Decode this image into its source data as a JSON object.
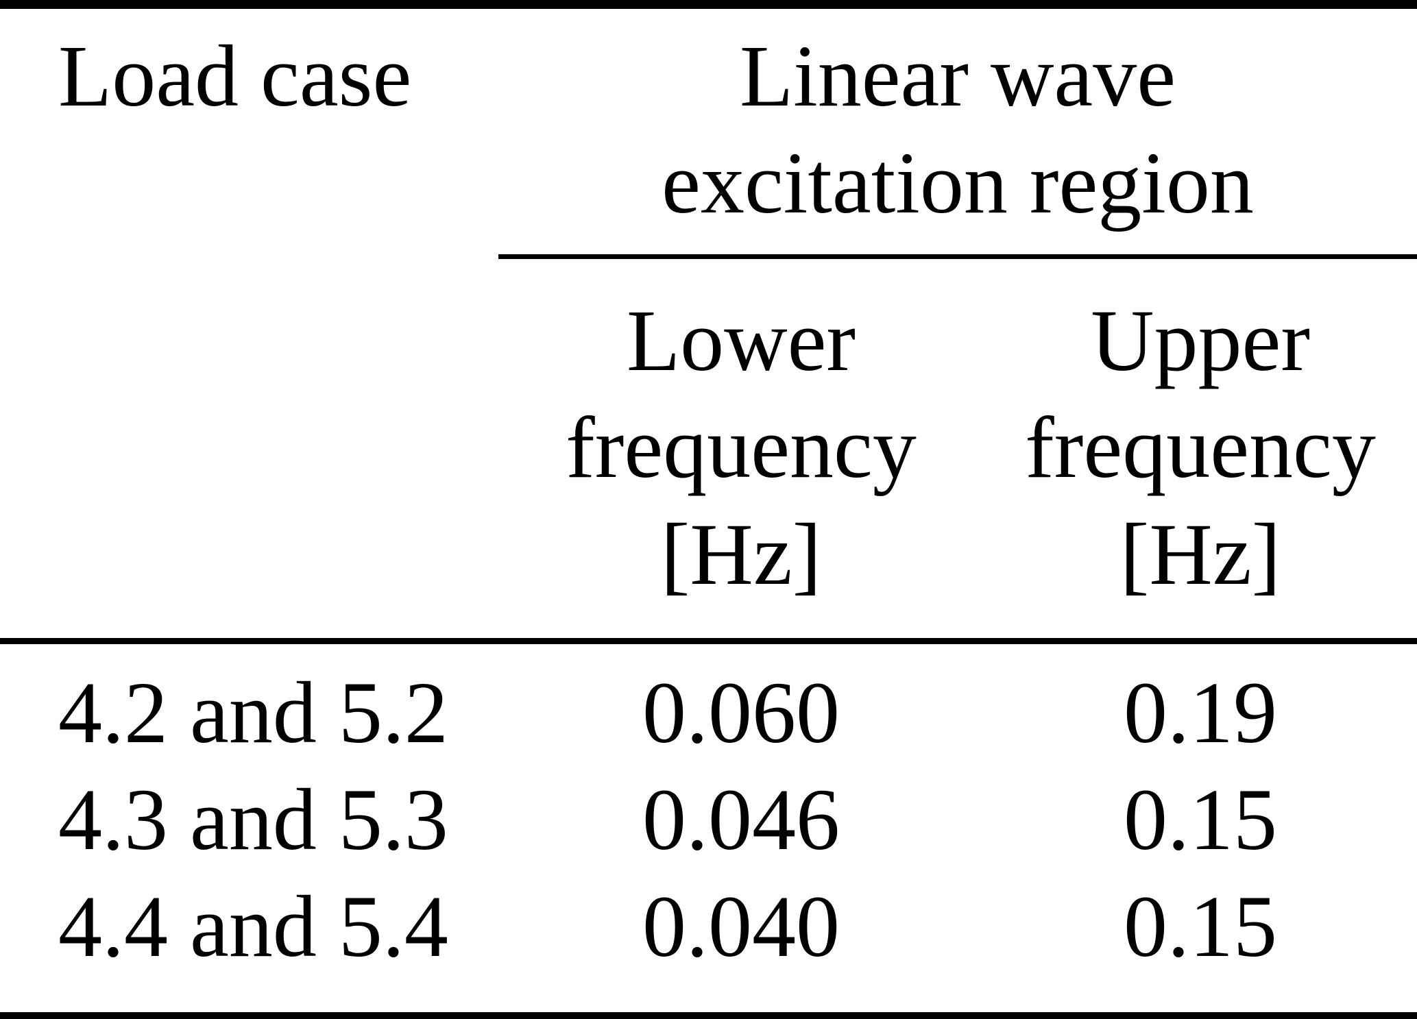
{
  "colors": {
    "text": "#000000",
    "background": "#ffffff",
    "rule": "#000000"
  },
  "table": {
    "header": {
      "load_case": "Load case",
      "spanner_line1": "Linear wave",
      "spanner_line2": "excitation region",
      "lower_col": {
        "line1": "Lower",
        "line2": "frequency",
        "line3": "[Hz]"
      },
      "upper_col": {
        "line1": "Upper",
        "line2": "frequency",
        "line3": "[Hz]"
      }
    },
    "rows": [
      {
        "load_case": "4.2 and 5.2",
        "lower_hz": "0.060",
        "upper_hz": "0.19"
      },
      {
        "load_case": "4.3 and 5.3",
        "lower_hz": "0.046",
        "upper_hz": "0.15"
      },
      {
        "load_case": "4.4 and 5.4",
        "lower_hz": "0.040",
        "upper_hz": "0.15"
      }
    ]
  },
  "chart_data": {
    "type": "table",
    "column_group": "Linear wave excitation region",
    "column_group_spans": [
      "Lower frequency [Hz]",
      "Upper frequency [Hz]"
    ],
    "columns": [
      "Load case",
      "Lower frequency [Hz]",
      "Upper frequency [Hz]"
    ],
    "rows": [
      [
        "4.2 and 5.2",
        "0.060",
        "0.19"
      ],
      [
        "4.3 and 5.3",
        "0.046",
        "0.15"
      ],
      [
        "4.4 and 5.4",
        "0.040",
        "0.15"
      ]
    ]
  }
}
